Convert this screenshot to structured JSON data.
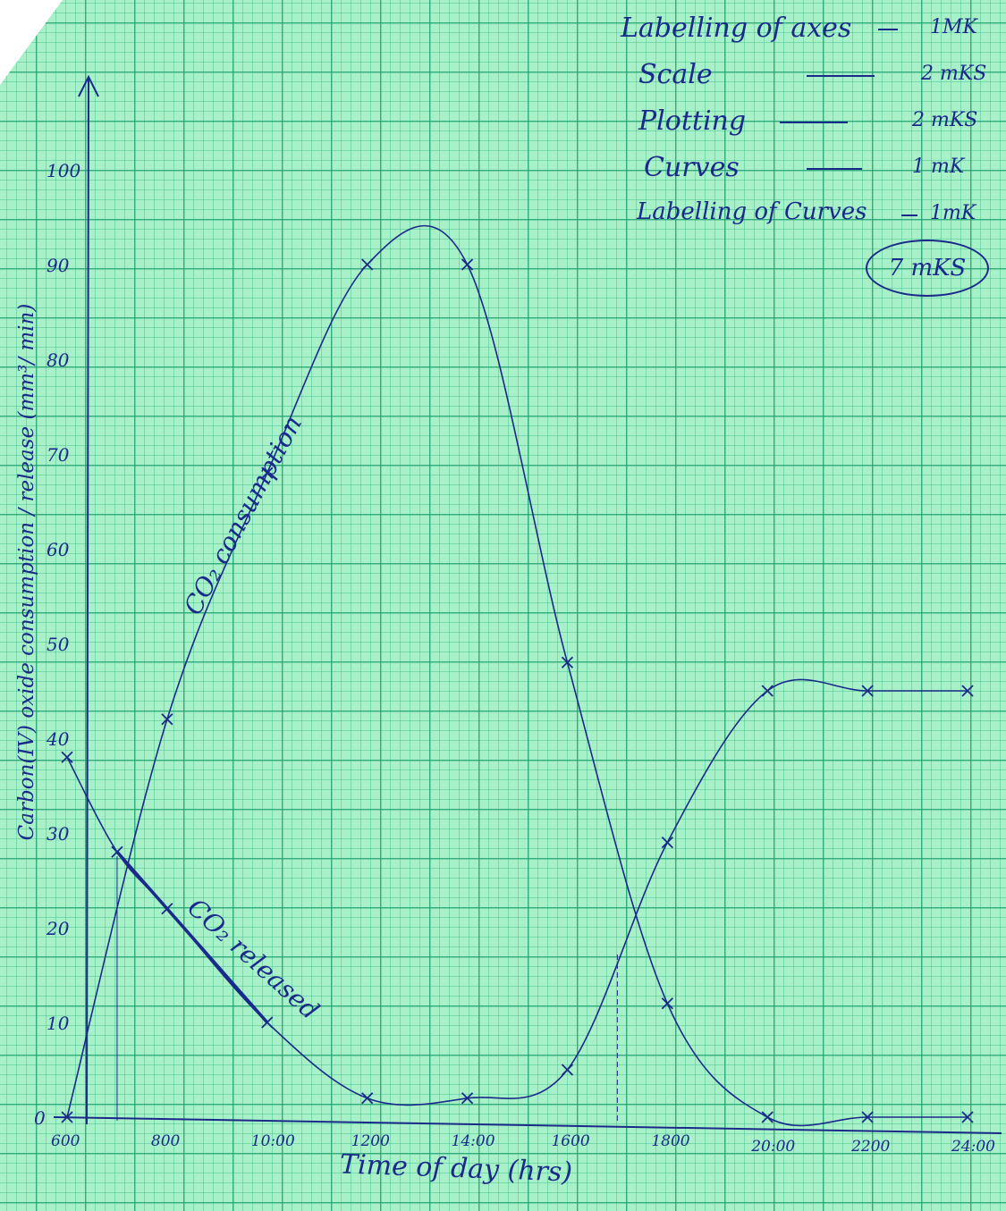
{
  "chart_data": {
    "type": "line",
    "xlabel": "Time of day (hrs)",
    "ylabel": "Carbon(IV) oxide consumption / release (mm³/ min)",
    "x_tick_labels": [
      "600",
      "800",
      "10:00",
      "1200",
      "14:00",
      "1600",
      "1800",
      "20:00",
      "2200",
      "24:00"
    ],
    "y_tick_labels": [
      "0",
      "10",
      "20",
      "30",
      "40",
      "50",
      "60",
      "70",
      "80",
      "90",
      "100"
    ],
    "xlim": [
      600,
      2400
    ],
    "ylim": [
      0,
      100
    ],
    "grid": true,
    "series": [
      {
        "name": "CO₂ consumption",
        "x": [
          600,
          800,
          1000,
          1200,
          1400,
          1600,
          1800,
          2000,
          2200,
          2400
        ],
        "y": [
          0,
          42,
          68,
          90,
          90,
          48,
          12,
          0,
          0,
          0
        ]
      },
      {
        "name": "CO₂ released",
        "x": [
          600,
          700,
          800,
          1000,
          1200,
          1400,
          1600,
          1800,
          2000,
          2200,
          2400
        ],
        "y": [
          38,
          28,
          22,
          10,
          2,
          2,
          5,
          29,
          45,
          45,
          45
        ]
      }
    ],
    "intersections_x": [
      700,
      1700
    ]
  },
  "marking_scheme": {
    "rows": [
      {
        "label": "Labelling of axes",
        "marks": "1MK"
      },
      {
        "label": "Scale",
        "marks": "2 mKS"
      },
      {
        "label": "Plotting",
        "marks": "2 mKS"
      },
      {
        "label": "Curves",
        "marks": "1 mK"
      },
      {
        "label": "Labelling of Curves",
        "marks": "1mK"
      }
    ],
    "total": "7 mKS"
  },
  "colors": {
    "ink": "#1a2a8a",
    "paper": "#a8f0c8",
    "grid": "#1ea06e"
  }
}
